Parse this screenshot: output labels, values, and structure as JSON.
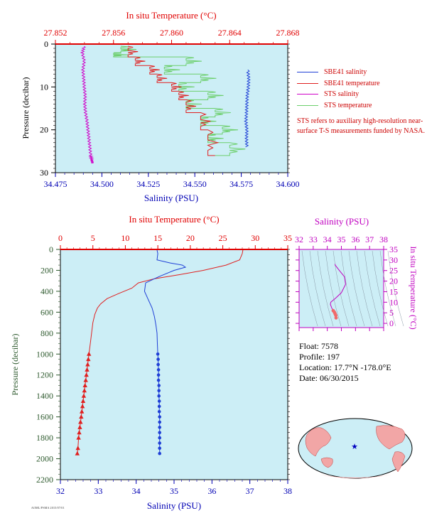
{
  "colors": {
    "plot_bg": "#cceef6",
    "temperature_axis": "#e00000",
    "salinity_axis": "#0000b4",
    "sbe41_salinity": "#1f3fd6",
    "sbe41_temperature": "#e02020",
    "sts_salinity": "#d000c8",
    "sts_temperature": "#6ccf6c",
    "ts_axis": "#c000c0",
    "pressure_axis": "#2e5a2e"
  },
  "top_panel": {
    "top_axis_title": "In situ Temperature (°C)",
    "top_ticks": [
      "27.852",
      "27.856",
      "27.860",
      "27.864",
      "27.868"
    ],
    "bottom_axis_title": "Salinity (PSU)",
    "bottom_ticks": [
      "34.475",
      "34.500",
      "34.525",
      "34.550",
      "34.575",
      "34.600"
    ],
    "left_axis_title": "Pressure (decibar)",
    "left_ticks": [
      "0",
      "10",
      "20",
      "30"
    ]
  },
  "legend": [
    {
      "label": "SBE41 salinity",
      "color": "#1f3fd6"
    },
    {
      "label": "SBE41 temperature",
      "color": "#e02020"
    },
    {
      "label": "STS salinity",
      "color": "#d000c8"
    },
    {
      "label": "STS temperature",
      "color": "#6ccf6c"
    }
  ],
  "note": "STS refers to auxiliary high-resolution near-surface T-S measurements funded by NASA.",
  "main_panel": {
    "top_axis_title": "In situ Temperature (°C)",
    "top_ticks": [
      "0",
      "5",
      "10",
      "15",
      "20",
      "25",
      "30",
      "35"
    ],
    "bottom_axis_title": "Salinity (PSU)",
    "bottom_ticks": [
      "32",
      "33",
      "34",
      "35",
      "36",
      "37",
      "38"
    ],
    "left_axis_title": "Pressure (decibar)",
    "left_ticks": [
      "0",
      "200",
      "400",
      "600",
      "800",
      "1000",
      "1200",
      "1400",
      "1600",
      "1800",
      "2000",
      "2200"
    ]
  },
  "ts_panel": {
    "top_axis_title": "Salinity (PSU)",
    "top_ticks": [
      "32",
      "33",
      "34",
      "35",
      "36",
      "37",
      "38"
    ],
    "right_axis_title": "In situ Temperature (°C)",
    "right_ticks": [
      "0",
      "5",
      "10",
      "15",
      "20",
      "25",
      "30",
      "35"
    ]
  },
  "info": {
    "float": "Float: 7578",
    "profile": "Profile: 197",
    "location": "Location: 17.7°N -178.0°E",
    "date": "Date: 06/30/2015"
  },
  "footer_code": "AOML/PSMA 2015/07/01",
  "chart_data": [
    {
      "type": "line",
      "title": "",
      "x_top_label": "In situ Temperature (°C)",
      "x_bottom_label": "Salinity (PSU)",
      "ylabel": "Pressure (decibar)",
      "xlim_temperature": [
        27.852,
        27.868
      ],
      "xlim_salinity": [
        34.475,
        34.6
      ],
      "ylim": [
        30,
        0
      ],
      "series": [
        {
          "name": "STS salinity",
          "axis": "salinity",
          "x": [
            34.4905,
            34.4895,
            34.4905,
            34.4898,
            34.4902,
            34.4905,
            34.491,
            34.4908,
            34.4912,
            34.492,
            34.4925,
            34.493,
            34.4935,
            34.494,
            34.4945,
            34.495
          ],
          "y": [
            0.5,
            2,
            4,
            6,
            8,
            10,
            12,
            14,
            16,
            18,
            20,
            22,
            24,
            26,
            27,
            27.8
          ]
        },
        {
          "name": "SBE41 salinity",
          "axis": "salinity",
          "x": [
            34.5785,
            34.579,
            34.5788,
            34.5782,
            34.578,
            34.5778,
            34.5775,
            34.578,
            34.5778,
            34.578
          ],
          "y": [
            6,
            8,
            10,
            12,
            14,
            16,
            18,
            20,
            22,
            24
          ]
        },
        {
          "name": "STS temperature",
          "axis": "temperature",
          "x": [
            27.8565,
            27.856,
            27.861,
            27.8595,
            27.862,
            27.8605,
            27.8625,
            27.861,
            27.863,
            27.862,
            27.8635,
            27.8625,
            27.864,
            27.863
          ],
          "y": [
            0.5,
            2,
            3,
            5,
            7,
            9,
            11,
            13,
            15,
            17,
            19,
            21,
            23,
            26
          ]
        },
        {
          "name": "SBE41 temperature",
          "axis": "temperature",
          "x": [
            27.857,
            27.8575,
            27.8585,
            27.859,
            27.86,
            27.8605,
            27.861,
            27.862,
            27.8625,
            27.863
          ],
          "y": [
            0.5,
            3,
            5,
            7,
            9,
            11,
            13,
            16,
            20,
            26
          ]
        }
      ]
    },
    {
      "type": "line",
      "title": "",
      "x_top_label": "In situ Temperature (°C)",
      "x_bottom_label": "Salinity (PSU)",
      "ylabel": "Pressure (decibar)",
      "xlim_temperature": [
        0,
        35
      ],
      "xlim_salinity": [
        32,
        38
      ],
      "ylim": [
        2200,
        0
      ],
      "series": [
        {
          "name": "SBE41 temperature",
          "axis": "temperature",
          "x": [
            28.1,
            28.0,
            27.6,
            25.5,
            22.0,
            18.5,
            14.5,
            12.0,
            11.0,
            9.0,
            7.2,
            6.2,
            5.7,
            5.3,
            5.0,
            4.8,
            4.6,
            4.4,
            4.3,
            4.2,
            4.1,
            4.0,
            3.9,
            3.8,
            3.7,
            3.6,
            3.5,
            3.4,
            3.3,
            3.2,
            3.1,
            3.0,
            2.9,
            2.8,
            2.7,
            2.6
          ],
          "y": [
            5,
            40,
            100,
            150,
            200,
            240,
            280,
            320,
            370,
            420,
            470,
            520,
            560,
            620,
            700,
            800,
            900,
            1000,
            1050,
            1100,
            1150,
            1200,
            1250,
            1300,
            1350,
            1400,
            1450,
            1500,
            1550,
            1600,
            1650,
            1700,
            1750,
            1800,
            1900,
            1950
          ]
        },
        {
          "name": "SBE41 salinity",
          "axis": "salinity",
          "x": [
            34.55,
            34.57,
            34.55,
            34.9,
            35.22,
            35.3,
            35.0,
            34.6,
            34.25,
            34.22,
            34.32,
            34.42,
            34.48,
            34.52,
            34.55,
            34.56,
            34.57,
            34.58,
            34.58,
            34.59,
            34.59,
            34.59,
            34.6,
            34.6,
            34.6,
            34.61,
            34.61,
            34.61,
            34.62,
            34.62,
            34.62,
            34.62,
            34.62,
            34.62,
            34.62,
            34.62
          ],
          "y": [
            5,
            40,
            100,
            130,
            150,
            170,
            200,
            260,
            320,
            400,
            480,
            560,
            640,
            720,
            800,
            900,
            1000,
            1050,
            1100,
            1150,
            1200,
            1250,
            1300,
            1350,
            1400,
            1450,
            1500,
            1550,
            1600,
            1650,
            1700,
            1750,
            1800,
            1850,
            1900,
            1950
          ]
        }
      ]
    },
    {
      "type": "line",
      "title": "",
      "xlabel": "Salinity (PSU)",
      "ylabel": "In situ Temperature (°C)",
      "xlim": [
        32,
        38
      ],
      "ylim": [
        -2,
        35
      ],
      "series": [
        {
          "name": "T-S curve",
          "axis": "salinity",
          "x": [
            34.55,
            34.56,
            34.8,
            35.22,
            35.3,
            35.0,
            34.6,
            34.25,
            34.22,
            34.32,
            34.42,
            34.5,
            34.55,
            34.6,
            34.62
          ],
          "y": [
            28.1,
            27.6,
            25.5,
            22.0,
            18.5,
            14.5,
            12.0,
            10.0,
            9.0,
            7.2,
            6.0,
            5.3,
            4.6,
            3.8,
            2.6
          ]
        }
      ]
    }
  ]
}
